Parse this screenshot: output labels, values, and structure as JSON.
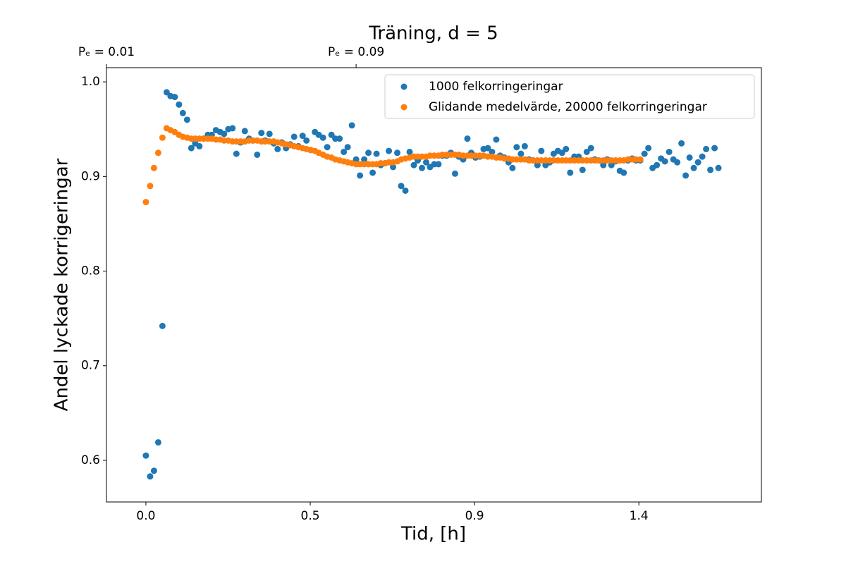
{
  "chart_data": {
    "type": "scatter",
    "title": "Träning, d = 5",
    "xlabel": "Tid, [h]",
    "ylabel": "Andel lyckade korrigeringar",
    "xlim": [
      -0.112,
      1.748
    ],
    "ylim": [
      0.556,
      1.015
    ],
    "xticks": [
      {
        "value": 0,
        "label": "0.0"
      },
      {
        "value": 0.4667,
        "label": "0.5"
      },
      {
        "value": 0.9333,
        "label": "0.9"
      },
      {
        "value": 1.4,
        "label": "1.4"
      }
    ],
    "yticks": [
      0.6,
      0.7,
      0.8,
      0.9,
      {
        "value": 1,
        "label": "1.0"
      }
    ],
    "top_ticks": [
      {
        "value": -0.112,
        "label": "Pₑ = 0.01"
      },
      {
        "value": 0.597,
        "label": "Pₑ = 0.09"
      }
    ],
    "legend": "upper right",
    "series": [
      {
        "name": "1000 felkorringeringar",
        "color": "#1f77b4",
        "x": [
          0,
          0.012,
          0.023,
          0.035,
          0.047,
          0.059,
          0.07,
          0.082,
          0.094,
          0.105,
          0.117,
          0.129,
          0.14,
          0.152,
          0.164,
          0.176,
          0.187,
          0.199,
          0.211,
          0.222,
          0.234,
          0.246,
          0.257,
          0.269,
          0.281,
          0.293,
          0.304,
          0.316,
          0.328,
          0.339,
          0.351,
          0.363,
          0.374,
          0.386,
          0.398,
          0.41,
          0.421,
          0.433,
          0.445,
          0.456,
          0.468,
          0.48,
          0.491,
          0.503,
          0.515,
          0.527,
          0.538,
          0.55,
          0.562,
          0.573,
          0.585,
          0.597,
          0.608,
          0.62,
          0.632,
          0.644,
          0.655,
          0.667,
          0.679,
          0.69,
          0.702,
          0.714,
          0.725,
          0.737,
          0.749,
          0.761,
          0.772,
          0.784,
          0.796,
          0.807,
          0.819,
          0.831,
          0.842,
          0.854,
          0.866,
          0.878,
          0.889,
          0.901,
          0.913,
          0.924,
          0.936,
          0.948,
          0.959,
          0.971,
          0.983,
          0.995,
          1.006,
          1.018,
          1.03,
          1.041,
          1.053,
          1.065,
          1.076,
          1.088,
          1.1,
          1.112,
          1.123,
          1.135,
          1.147,
          1.158,
          1.17,
          1.182,
          1.193,
          1.205,
          1.217,
          1.229,
          1.24,
          1.252,
          1.264,
          1.275,
          1.287,
          1.299,
          1.31,
          1.322,
          1.334,
          1.346,
          1.357,
          1.369,
          1.381,
          1.392,
          1.404,
          1.416,
          1.427,
          1.439,
          1.451,
          1.463,
          1.474,
          1.486,
          1.498,
          1.509,
          1.521,
          1.533,
          1.544,
          1.556,
          1.568,
          1.58,
          1.591,
          1.603,
          1.615,
          1.626
        ],
        "values": [
          0.605,
          0.583,
          0.589,
          0.619,
          0.742,
          0.989,
          0.985,
          0.984,
          0.976,
          0.967,
          0.96,
          0.93,
          0.935,
          0.932,
          0.94,
          0.944,
          0.944,
          0.949,
          0.947,
          0.945,
          0.95,
          0.951,
          0.924,
          0.936,
          0.948,
          0.94,
          0.938,
          0.923,
          0.946,
          0.938,
          0.945,
          0.935,
          0.929,
          0.936,
          0.93,
          0.934,
          0.942,
          0.932,
          0.943,
          0.938,
          0.928,
          0.947,
          0.944,
          0.941,
          0.931,
          0.944,
          0.94,
          0.94,
          0.926,
          0.931,
          0.954,
          0.918,
          0.901,
          0.918,
          0.925,
          0.904,
          0.924,
          0.912,
          0.914,
          0.927,
          0.91,
          0.925,
          0.89,
          0.885,
          0.926,
          0.912,
          0.917,
          0.909,
          0.915,
          0.91,
          0.913,
          0.913,
          0.922,
          0.922,
          0.925,
          0.903,
          0.921,
          0.918,
          0.94,
          0.925,
          0.92,
          0.921,
          0.929,
          0.93,
          0.926,
          0.939,
          0.922,
          0.92,
          0.915,
          0.909,
          0.931,
          0.924,
          0.932,
          0.918,
          0.917,
          0.912,
          0.927,
          0.912,
          0.915,
          0.924,
          0.927,
          0.925,
          0.929,
          0.904,
          0.921,
          0.921,
          0.907,
          0.926,
          0.93,
          0.918,
          0.917,
          0.912,
          0.918,
          0.912,
          0.916,
          0.906,
          0.904,
          0.917,
          0.919,
          0.917,
          0.917,
          0.924,
          0.93,
          0.909,
          0.912,
          0.919,
          0.916,
          0.926,
          0.918,
          0.915,
          0.935,
          0.901,
          0.92,
          0.909,
          0.915,
          0.921,
          0.929,
          0.907,
          0.93,
          0.909
        ]
      },
      {
        "name": "Glidande medelvärde, 20000 felkorringeringar",
        "color": "#ff7f0e",
        "x": [
          0,
          0.012,
          0.023,
          0.035,
          0.047,
          0.059,
          0.07,
          0.082,
          0.094,
          0.105,
          0.117,
          0.129,
          0.14,
          0.152,
          0.164,
          0.176,
          0.187,
          0.199,
          0.211,
          0.222,
          0.234,
          0.246,
          0.257,
          0.269,
          0.281,
          0.293,
          0.304,
          0.316,
          0.328,
          0.339,
          0.351,
          0.363,
          0.374,
          0.386,
          0.398,
          0.41,
          0.421,
          0.433,
          0.445,
          0.456,
          0.468,
          0.48,
          0.491,
          0.503,
          0.515,
          0.527,
          0.538,
          0.55,
          0.562,
          0.573,
          0.585,
          0.597,
          0.608,
          0.62,
          0.632,
          0.644,
          0.655,
          0.667,
          0.679,
          0.69,
          0.702,
          0.714,
          0.725,
          0.737,
          0.749,
          0.761,
          0.772,
          0.784,
          0.796,
          0.807,
          0.819,
          0.831,
          0.842,
          0.854,
          0.866,
          0.878,
          0.889,
          0.901,
          0.913,
          0.924,
          0.936,
          0.948,
          0.959,
          0.971,
          0.983,
          0.995,
          1.006,
          1.018,
          1.03,
          1.041,
          1.053,
          1.065,
          1.076,
          1.088,
          1.1,
          1.112,
          1.123,
          1.135,
          1.147,
          1.158,
          1.17,
          1.182,
          1.193,
          1.205,
          1.217,
          1.229,
          1.24,
          1.252,
          1.264,
          1.275,
          1.287,
          1.299,
          1.31,
          1.322,
          1.334,
          1.346,
          1.357,
          1.369,
          1.381,
          1.392,
          1.404
        ],
        "values": [
          0.873,
          0.89,
          0.909,
          0.925,
          0.941,
          0.951,
          0.949,
          0.947,
          0.944,
          0.942,
          0.941,
          0.94,
          0.94,
          0.94,
          0.94,
          0.94,
          0.94,
          0.939,
          0.939,
          0.938,
          0.938,
          0.937,
          0.937,
          0.937,
          0.937,
          0.938,
          0.938,
          0.938,
          0.937,
          0.937,
          0.937,
          0.937,
          0.936,
          0.935,
          0.934,
          0.933,
          0.932,
          0.931,
          0.93,
          0.929,
          0.928,
          0.927,
          0.925,
          0.923,
          0.921,
          0.92,
          0.918,
          0.917,
          0.916,
          0.915,
          0.914,
          0.913,
          0.913,
          0.913,
          0.913,
          0.913,
          0.913,
          0.914,
          0.914,
          0.915,
          0.915,
          0.916,
          0.918,
          0.919,
          0.92,
          0.921,
          0.921,
          0.921,
          0.921,
          0.922,
          0.922,
          0.922,
          0.923,
          0.923,
          0.923,
          0.923,
          0.923,
          0.922,
          0.922,
          0.922,
          0.922,
          0.922,
          0.922,
          0.921,
          0.921,
          0.92,
          0.92,
          0.919,
          0.919,
          0.918,
          0.918,
          0.918,
          0.918,
          0.917,
          0.917,
          0.917,
          0.917,
          0.917,
          0.917,
          0.917,
          0.917,
          0.917,
          0.917,
          0.917,
          0.917,
          0.917,
          0.917,
          0.917,
          0.917,
          0.917,
          0.917,
          0.917,
          0.917,
          0.917,
          0.917,
          0.917,
          0.917,
          0.918,
          0.918,
          0.918,
          0.918
        ]
      }
    ]
  }
}
